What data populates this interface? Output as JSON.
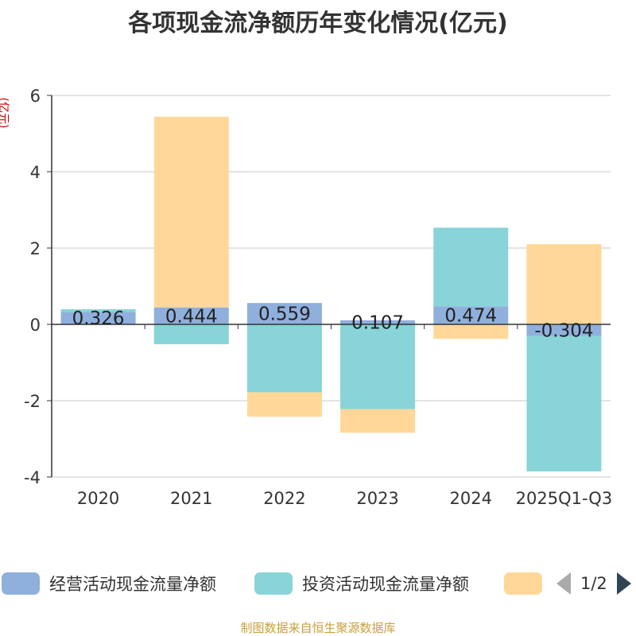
{
  "chart_data": {
    "type": "bar",
    "stacked": true,
    "title": "各项现金流净额历年变化情况(亿元)",
    "ylabel": "(亿元)",
    "categories": [
      "2020",
      "2021",
      "2022",
      "2023",
      "2024",
      "2025Q1-Q3"
    ],
    "ylim": [
      -4,
      6
    ],
    "yticks": [
      6,
      4,
      2,
      0,
      -2,
      -4
    ],
    "grid": true,
    "series": [
      {
        "name": "经营活动现金流量净额",
        "color": "#8fb0dc",
        "values": [
          0.326,
          0.444,
          0.559,
          0.107,
          0.474,
          -0.304
        ],
        "labels": [
          "0.326",
          "0.444",
          "0.559",
          "0.107",
          "0.474",
          "-0.304"
        ]
      },
      {
        "name": "投资活动现金流量净额",
        "color": "#88d4d8",
        "values": [
          0.07,
          -0.52,
          -1.78,
          -2.22,
          2.06,
          -3.55
        ]
      },
      {
        "name": "",
        "color": "#ffd899",
        "values": [
          0.0,
          5.0,
          -0.64,
          -0.62,
          -0.38,
          2.1
        ]
      }
    ],
    "legend_position": "bottom",
    "pager": "1/2"
  },
  "source": "制图数据来自恒生聚源数据库"
}
